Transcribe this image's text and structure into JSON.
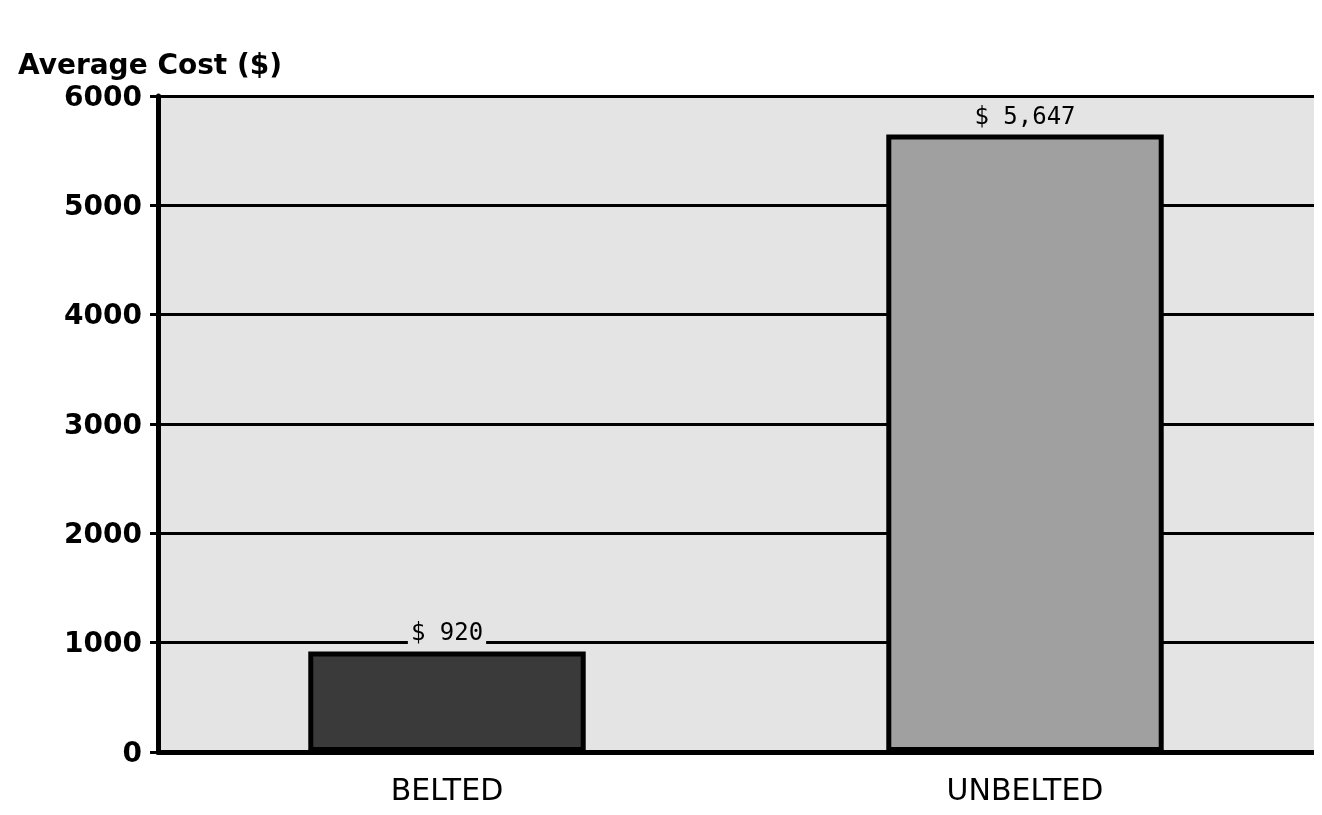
{
  "chart_data": {
    "type": "bar",
    "ylabel": "Average Cost ($)",
    "categories": [
      "BELTED",
      "UNBELTED"
    ],
    "colors": [
      "#3a3a3a",
      "#a0a0a0"
    ],
    "values": [
      920,
      5647
    ],
    "value_labels": [
      "$ 920",
      "$ 5,647"
    ],
    "ylim": [
      0,
      6000
    ],
    "yticks": [
      0,
      1000,
      2000,
      3000,
      4000,
      5000,
      6000
    ],
    "grid": "y"
  }
}
